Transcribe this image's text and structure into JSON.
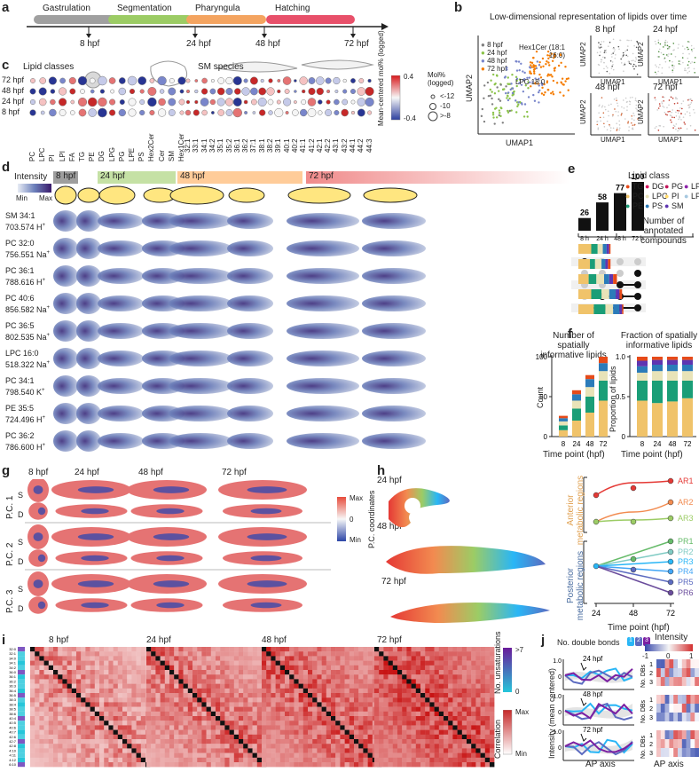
{
  "panels": {
    "a": "a",
    "b": "b",
    "c": "c",
    "d": "d",
    "e": "e",
    "f": "f",
    "g": "g",
    "h": "h",
    "i": "i",
    "j": "j"
  },
  "a": {
    "stages": [
      "Gastrulation",
      "Segmentation",
      "Pharyngula",
      "Hatching"
    ],
    "stage_colors": [
      "#a0a0a0",
      "#9ccc65",
      "#f4a460",
      "#e8506a"
    ],
    "times": [
      "8 hpf",
      "24 hpf",
      "48 hpf",
      "72 hpf"
    ]
  },
  "b": {
    "title": "Low-dimensional representation of lipids over time",
    "legend": [
      "8 hpf",
      "24 hpf",
      "48 hpf",
      "72 hpf"
    ],
    "legend_colors": [
      "#808080",
      "#8bc34a",
      "#7986cb",
      "#f57c00"
    ],
    "annot1": "Hex1Cer (18:1 16:0)",
    "annot2": "LPC 18:0",
    "xlabel": "UMAP1",
    "ylabel": "UMAP2",
    "small_titles": [
      "8 hpf",
      "24 hpf",
      "48 hpf",
      "72 hpf"
    ]
  },
  "c": {
    "title_classes": "Lipid classes",
    "title_species": "SM species",
    "rows": [
      "72 hpf",
      "48 hpf",
      "24 hpf",
      "8 hpf"
    ],
    "class_cols": [
      "PC",
      "LPC",
      "PI",
      "LPI",
      "FA",
      "TG",
      "PE",
      "DG",
      "LPG",
      "PG",
      "LPE",
      "PS",
      "Hex2Cer",
      "Cer",
      "SM",
      "Hex1Cer"
    ],
    "sm_cols": [
      "32:1",
      "33:1",
      "34:1",
      "34:2",
      "35:1",
      "35:2",
      "36:1",
      "36:2",
      "37:1",
      "38:1",
      "38:2",
      "39:1",
      "40:1",
      "40:2",
      "41:1",
      "41:2",
      "42:1",
      "42:2",
      "43:1",
      "43:2",
      "44:1",
      "44:2",
      "44:3"
    ],
    "colorbar_label": "Mean-centered mol% (logged)",
    "colorbar_ticks": [
      "0.4",
      "-0.4"
    ],
    "size_title": "Mol% (logged)",
    "size_items": [
      "<-12",
      "-10",
      ">-8"
    ]
  },
  "d": {
    "intensity": "Intensity",
    "min": "Min",
    "max": "Max",
    "timepoints": [
      "8 hpf",
      "24 hpf",
      "48 hpf",
      "72 hpf"
    ],
    "tp_colors": [
      "#9e9e9e",
      "#c5e1a5",
      "#ffcc99",
      "#f4a3a3"
    ],
    "axes": [
      "D",
      "A",
      "P",
      "L",
      "A",
      "D"
    ],
    "rows": [
      {
        "name": "SM 34:1",
        "mz": "703.574 H",
        "ion": "+"
      },
      {
        "name": "PC 32:0",
        "mz": "756.551 Na",
        "ion": "+"
      },
      {
        "name": "PC 36:1",
        "mz": "788.616 H",
        "ion": "+"
      },
      {
        "name": "PC 40:6",
        "mz": "856.582 Na",
        "ion": "+"
      },
      {
        "name": "PC 36:5",
        "mz": "802.535 Na",
        "ion": "+"
      },
      {
        "name": "LPC 16:0",
        "mz": "518.322 Na",
        "ion": "+"
      },
      {
        "name": "PC 34:1",
        "mz": "798.540 K",
        "ion": "+"
      },
      {
        "name": "PE 35:5",
        "mz": "724.496 H",
        "ion": "+"
      },
      {
        "name": "PC 36:2",
        "mz": "786.600 H",
        "ion": "+"
      }
    ]
  },
  "e": {
    "bars": [
      26,
      58,
      77,
      100
    ],
    "bar_x": [
      "8 h",
      "24 h",
      "48 h",
      "72 h"
    ],
    "legend_title": "Lipid class",
    "legend": [
      "TG",
      "DG",
      "PG",
      "LPG",
      "PC",
      "LPC",
      "PI",
      "LPI",
      "PE",
      "PS",
      "SM"
    ],
    "legend_colors": [
      "#e64a19",
      "#d81b60",
      "#c2185b",
      "#8e24aa",
      "#f0c36a",
      "#e8e3b8",
      "#ffd966",
      "#a6c8e0",
      "#1a9e77",
      "#2b7bb9",
      "#5e35b1"
    ],
    "xlabel": "Number of annotated compounds",
    "xticks": [
      "0",
      "10",
      "20",
      "30"
    ]
  },
  "f": {
    "title_left": "Number of spatially informative lipids",
    "title_right": "Fraction of spatially informative lipids",
    "ylabel_left": "Count",
    "ylabel_right": "Proportion of lipids",
    "xlabel": "Time point (hpf)",
    "x": [
      "8",
      "24",
      "48",
      "72"
    ],
    "yticks_left": [
      "0",
      "50",
      "100"
    ],
    "yticks_right": [
      "0",
      "0.5",
      "1.0"
    ]
  },
  "g": {
    "times": [
      "8 hpf",
      "24 hpf",
      "48 hpf",
      "72 hpf"
    ],
    "pcs": [
      "P.C. 1",
      "P.C. 2",
      "P.C. 3"
    ],
    "views": [
      "S",
      "D"
    ],
    "cbar_label": "P.C. coordinates",
    "cbar_ticks": [
      "Max",
      "0",
      "Min"
    ]
  },
  "h": {
    "times": [
      "24 hpf",
      "48 hpf",
      "72 hpf"
    ],
    "ar": [
      "AR1",
      "AR2",
      "AR3"
    ],
    "pr": [
      "PR1",
      "PR2",
      "PR3",
      "PR4",
      "PR5",
      "PR6"
    ],
    "ar_colors": [
      "#e53935",
      "#f28b50",
      "#9ccc65"
    ],
    "pr_colors": [
      "#66bb6a",
      "#80cbc4",
      "#29b6f6",
      "#42a5f5",
      "#5c6bc0",
      "#6a4c9c"
    ],
    "group_ant": "Anterior metabolic regions",
    "group_post": "Posterior metabolic regions",
    "xlabel": "Time point (hpf)",
    "xticks": [
      "24",
      "48",
      "72"
    ]
  },
  "i": {
    "times": [
      "8 hpf",
      "24 hpf",
      "48 hpf",
      "72 hpf"
    ],
    "row_labels": [
      "32:0",
      "32:1",
      "34:0",
      "34:1",
      "34:2",
      "36:0",
      "36:1",
      "36:2",
      "36:3",
      "36:4",
      "36:5",
      "38:3",
      "38:4",
      "38:5",
      "38:6",
      "40:4",
      "40:5",
      "40:6",
      "40:7",
      "42:6",
      "42:7",
      "42:8",
      "44:10",
      "44:11",
      "44:12",
      "46:10"
    ],
    "cbar1_label": "No. unsaturations",
    "cbar1_ticks": [
      ">7",
      "0"
    ],
    "cbar2_label": "Correlation",
    "cbar2_ticks": [
      "Max",
      "Min"
    ]
  },
  "j": {
    "legend_title": "No. double bonds",
    "legend_nums": [
      "1",
      "2",
      "3"
    ],
    "times": [
      "24 hpf",
      "48 hpf",
      "72 hpf"
    ],
    "ylabel": "Intensity (mean centered)",
    "xlabel": "AP axis",
    "yticks": [
      "1.0",
      "0"
    ],
    "heat_title": "Intensity",
    "heat_ticks": [
      "-1",
      "0",
      "1"
    ],
    "heat_ylabel": "No. DBs",
    "heat_rows": [
      "1",
      "2",
      "3"
    ],
    "heat_xlabel": "AP axis"
  }
}
